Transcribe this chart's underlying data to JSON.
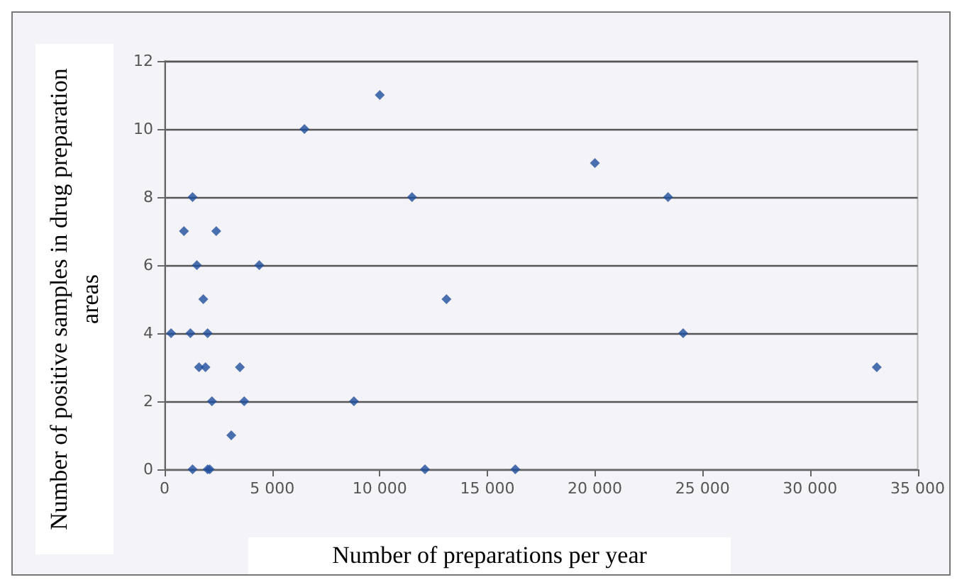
{
  "chart_data": {
    "type": "scatter",
    "xlabel": "Number of preparations per year",
    "ylabel": "Number of positive samples in drug preparation areas",
    "x": [
      1300,
      2000,
      2100,
      12100,
      16300,
      3100,
      2200,
      3700,
      8800,
      1600,
      1900,
      3500,
      33100,
      300,
      1200,
      2000,
      24100,
      1800,
      13100,
      1500,
      4400,
      900,
      2400,
      1300,
      11500,
      23400,
      20000,
      6500,
      10000
    ],
    "values": [
      0,
      0,
      0,
      0,
      0,
      1,
      2,
      2,
      2,
      3,
      3,
      3,
      3,
      4,
      4,
      4,
      4,
      5,
      5,
      6,
      6,
      7,
      7,
      8,
      8,
      8,
      9,
      10,
      11
    ],
    "color": "#1f4e9c",
    "marker": "diamond",
    "xlim": [
      0,
      35000
    ],
    "xticks": [
      0,
      {
        "value": 5000,
        "label": "5 000"
      },
      {
        "value": 10000,
        "label": "10 000"
      },
      {
        "value": 15000,
        "label": "15 000"
      },
      {
        "value": 20000,
        "label": "20 000"
      },
      {
        "value": 25000,
        "label": "25 000"
      },
      {
        "value": 30000,
        "label": "30 000"
      },
      {
        "value": 35000,
        "label": "35 000"
      }
    ],
    "ylim": [
      0,
      12
    ],
    "yticks": [
      0,
      2,
      4,
      6,
      8,
      10,
      12
    ],
    "grid": "y"
  }
}
